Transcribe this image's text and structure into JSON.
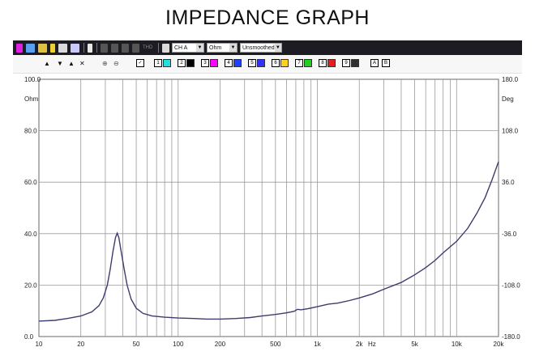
{
  "title": "IMPEDANCE GRAPH",
  "toolbar": {
    "channel": "CH A",
    "unit": "Ohm",
    "smoothing": "Unsmoothed",
    "tho_label": "THD",
    "buttons": [
      "arrow-magenta",
      "save-disk",
      "folder",
      "probe",
      "fit",
      "print",
      "marker",
      "cursor",
      "grid",
      "signal",
      "tools",
      "measure"
    ]
  },
  "overlays": {
    "numbers": [
      "1",
      "2",
      "3",
      "4",
      "5",
      "6",
      "7",
      "8",
      "9"
    ],
    "colors": [
      "#000000",
      "#20e0e0",
      "#000000",
      "#ff00ff",
      "#2040ff",
      "#3030ff",
      "#ffd020",
      "#20d020",
      "#e02020",
      "#303030"
    ],
    "letters": [
      "A",
      "B"
    ]
  },
  "chart_data": {
    "type": "line",
    "x_scale": "log",
    "xlim": [
      10,
      20000
    ],
    "ylim": [
      0,
      100
    ],
    "y2lim": [
      -180,
      180
    ],
    "y_unit": "Ohm",
    "y2_unit": "Deg",
    "x_unit": "Hz",
    "grid": true,
    "x_tick_labels": [
      {
        "v": 10,
        "t": "10"
      },
      {
        "v": 20,
        "t": "20"
      },
      {
        "v": 50,
        "t": "50"
      },
      {
        "v": 100,
        "t": "100"
      },
      {
        "v": 200,
        "t": "200"
      },
      {
        "v": 500,
        "t": "500"
      },
      {
        "v": 1000,
        "t": "1k"
      },
      {
        "v": 2000,
        "t": "2k"
      },
      {
        "v": 5000,
        "t": "5k"
      },
      {
        "v": 10000,
        "t": "10k"
      },
      {
        "v": 20000,
        "t": "20k"
      }
    ],
    "y_tick_labels": [
      {
        "v": 100,
        "t": "100.0"
      },
      {
        "v": 80,
        "t": "80.0"
      },
      {
        "v": 60,
        "t": "60.0"
      },
      {
        "v": 40,
        "t": "40.0"
      },
      {
        "v": 20,
        "t": "20.0"
      },
      {
        "v": 0,
        "t": "0.0"
      }
    ],
    "y2_tick_labels": [
      {
        "v": 180,
        "t": "180.0"
      },
      {
        "v": 108,
        "t": "108.0"
      },
      {
        "v": 36,
        "t": "36.0"
      },
      {
        "v": -36,
        "t": "-36.0"
      },
      {
        "v": -108,
        "t": "-108.0"
      },
      {
        "v": -180,
        "t": "-180.0"
      }
    ],
    "series": [
      {
        "color": "#3c3c6e",
        "points": [
          [
            10,
            6.0
          ],
          [
            13,
            6.3
          ],
          [
            16,
            7.0
          ],
          [
            20,
            8.0
          ],
          [
            24,
            9.6
          ],
          [
            27,
            12.0
          ],
          [
            29,
            15.0
          ],
          [
            31,
            20.0
          ],
          [
            32.5,
            26.0
          ],
          [
            34,
            33.0
          ],
          [
            35.5,
            38.5
          ],
          [
            36.5,
            40.2
          ],
          [
            37.5,
            38.5
          ],
          [
            39,
            33.0
          ],
          [
            41,
            26.0
          ],
          [
            43,
            20.0
          ],
          [
            46,
            14.5
          ],
          [
            50,
            11.0
          ],
          [
            56,
            9.0
          ],
          [
            65,
            8.0
          ],
          [
            80,
            7.5
          ],
          [
            100,
            7.2
          ],
          [
            130,
            7.0
          ],
          [
            160,
            6.8
          ],
          [
            200,
            6.8
          ],
          [
            260,
            7.0
          ],
          [
            330,
            7.4
          ],
          [
            400,
            8.0
          ],
          [
            500,
            8.6
          ],
          [
            600,
            9.2
          ],
          [
            680,
            9.8
          ],
          [
            720,
            10.6
          ],
          [
            760,
            10.4
          ],
          [
            850,
            10.8
          ],
          [
            1000,
            11.6
          ],
          [
            1200,
            12.6
          ],
          [
            1400,
            13.0
          ],
          [
            1700,
            14.0
          ],
          [
            2000,
            15.0
          ],
          [
            2500,
            16.6
          ],
          [
            3000,
            18.4
          ],
          [
            4000,
            21.0
          ],
          [
            5000,
            24.0
          ],
          [
            6000,
            26.8
          ],
          [
            7000,
            29.6
          ],
          [
            8000,
            32.5
          ],
          [
            10000,
            37.0
          ],
          [
            12000,
            42.0
          ],
          [
            14000,
            48.0
          ],
          [
            16000,
            54.0
          ],
          [
            18000,
            61.0
          ],
          [
            20000,
            68.0
          ]
        ]
      }
    ]
  }
}
